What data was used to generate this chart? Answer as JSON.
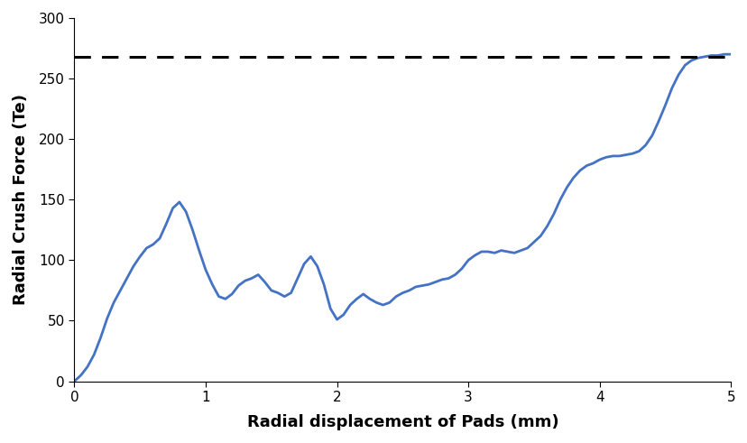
{
  "x": [
    0,
    0.05,
    0.1,
    0.15,
    0.2,
    0.25,
    0.3,
    0.35,
    0.4,
    0.45,
    0.5,
    0.55,
    0.6,
    0.65,
    0.7,
    0.75,
    0.8,
    0.85,
    0.9,
    0.95,
    1.0,
    1.05,
    1.1,
    1.15,
    1.2,
    1.25,
    1.3,
    1.35,
    1.4,
    1.45,
    1.5,
    1.55,
    1.6,
    1.65,
    1.7,
    1.75,
    1.8,
    1.85,
    1.9,
    1.95,
    2.0,
    2.05,
    2.1,
    2.15,
    2.2,
    2.25,
    2.3,
    2.35,
    2.4,
    2.45,
    2.5,
    2.55,
    2.6,
    2.65,
    2.7,
    2.75,
    2.8,
    2.85,
    2.9,
    2.95,
    3.0,
    3.05,
    3.1,
    3.15,
    3.2,
    3.25,
    3.3,
    3.35,
    3.4,
    3.45,
    3.5,
    3.55,
    3.6,
    3.65,
    3.7,
    3.75,
    3.8,
    3.85,
    3.9,
    3.95,
    4.0,
    4.05,
    4.1,
    4.15,
    4.2,
    4.25,
    4.3,
    4.35,
    4.4,
    4.45,
    4.5,
    4.55,
    4.6,
    4.65,
    4.7,
    4.75,
    4.8,
    4.85,
    4.9,
    4.95,
    5.0
  ],
  "y": [
    0,
    5,
    12,
    22,
    36,
    52,
    65,
    75,
    85,
    95,
    103,
    110,
    113,
    118,
    130,
    143,
    148,
    140,
    125,
    108,
    92,
    80,
    70,
    68,
    72,
    79,
    83,
    85,
    88,
    82,
    75,
    73,
    70,
    73,
    85,
    97,
    103,
    95,
    80,
    60,
    51,
    55,
    63,
    68,
    72,
    68,
    65,
    63,
    65,
    70,
    73,
    75,
    78,
    79,
    80,
    82,
    84,
    85,
    88,
    93,
    100,
    104,
    107,
    107,
    106,
    108,
    107,
    106,
    108,
    110,
    115,
    120,
    128,
    138,
    150,
    160,
    168,
    174,
    178,
    180,
    183,
    185,
    186,
    186,
    187,
    188,
    190,
    195,
    203,
    215,
    228,
    242,
    253,
    261,
    265,
    267,
    268,
    269,
    269,
    270,
    270
  ],
  "line_color": "#4472C4",
  "line_width": 2.0,
  "dashed_y": 268,
  "dashed_color": "#000000",
  "dashed_linewidth": 2.2,
  "xlim": [
    0,
    5
  ],
  "ylim": [
    0,
    300
  ],
  "xlabel": "Radial displacement of Pads (mm)",
  "ylabel": "Radial Crush Force (Te)",
  "xlabel_fontsize": 13,
  "ylabel_fontsize": 13,
  "xticks": [
    0,
    1,
    2,
    3,
    4,
    5
  ],
  "yticks": [
    0,
    50,
    100,
    150,
    200,
    250,
    300
  ],
  "tick_fontsize": 11,
  "background_color": "#ffffff",
  "grid": false
}
